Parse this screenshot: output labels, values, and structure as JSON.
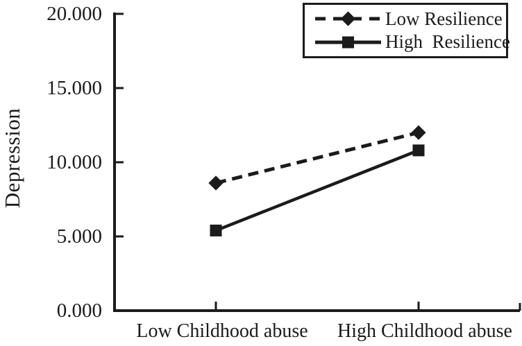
{
  "figure": {
    "background": "#ffffff",
    "ink_color": "#1b1b1b"
  },
  "chart_data": {
    "type": "line",
    "title": "",
    "xlabel": "",
    "ylabel": "Depression",
    "categories": [
      "Low Childhood abuse",
      "High Childhood abuse"
    ],
    "series": [
      {
        "name": "Low Resilience",
        "values": [
          8.6,
          12.0
        ],
        "line_style": "dashed",
        "marker": "diamond"
      },
      {
        "name": "High  Resilience",
        "values": [
          5.4,
          10.8
        ],
        "line_style": "solid",
        "marker": "square"
      }
    ],
    "ylim": [
      0,
      20
    ],
    "yticks": [
      0,
      5,
      10,
      15,
      20
    ],
    "ytick_labels": [
      "0.000",
      "5.000",
      "10.000",
      "15.000",
      "20.000"
    ],
    "grid": "off",
    "legend_position": "top-right"
  }
}
